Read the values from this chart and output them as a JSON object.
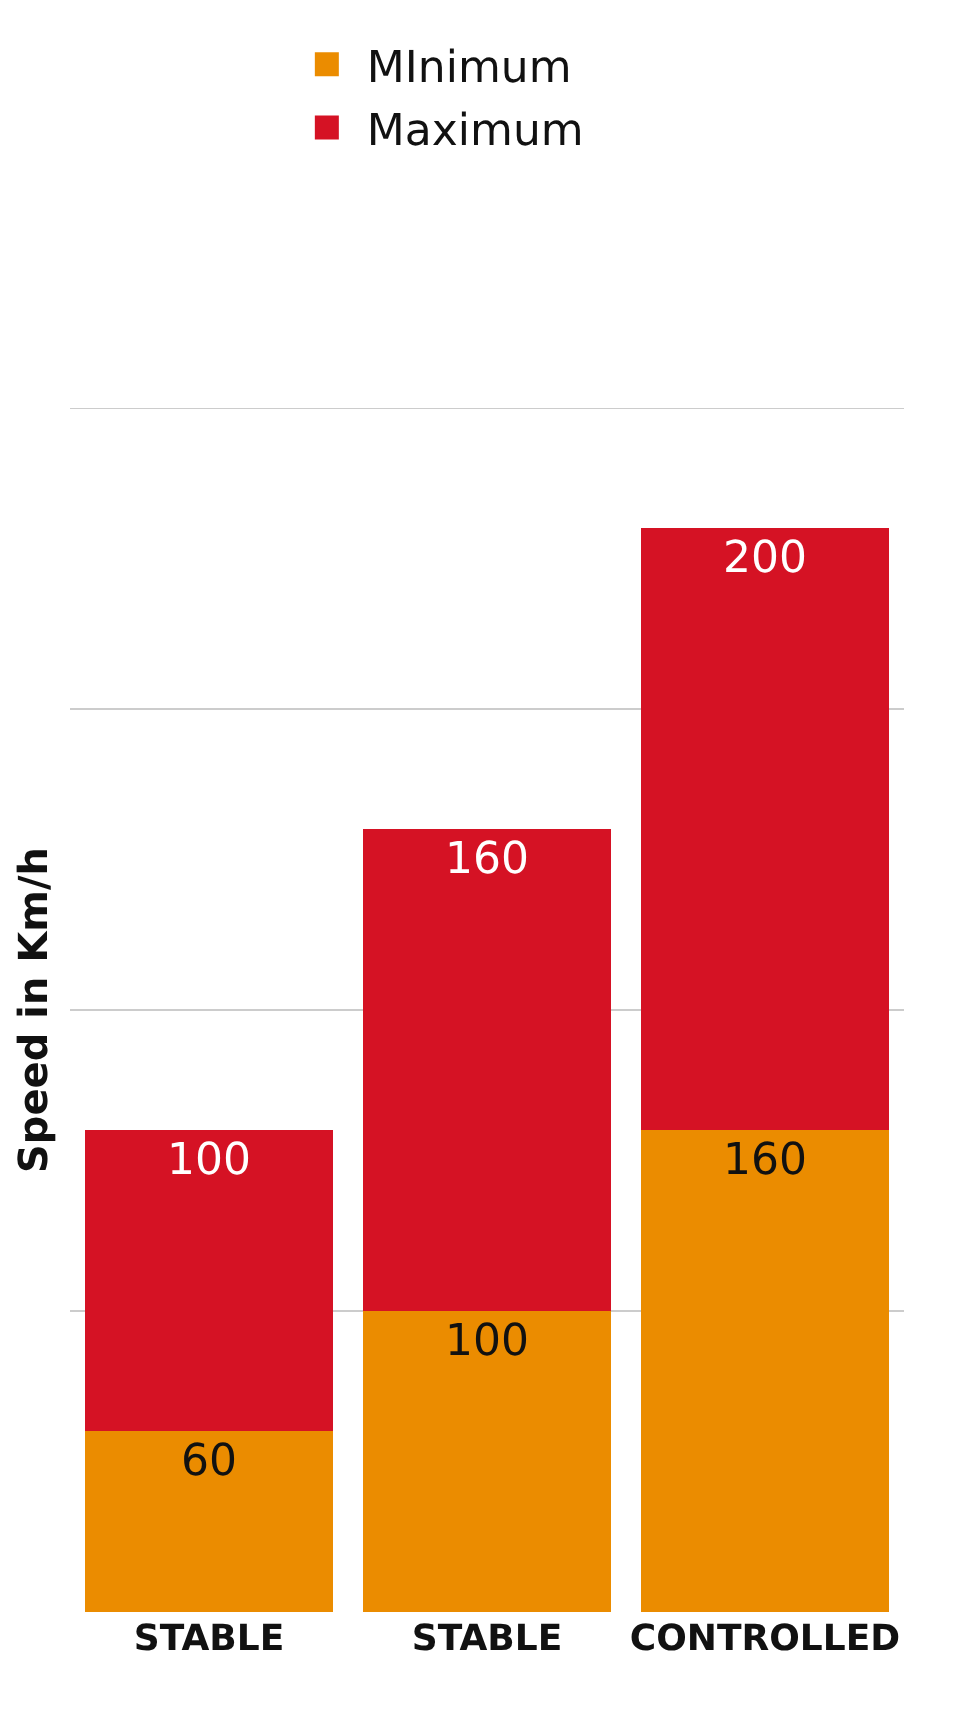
{
  "chart_data": {
    "type": "bar",
    "stacked": true,
    "ylabel": "Speed in Km/h",
    "categories": [
      "STABLE",
      "STABLE",
      "CONTROLLED"
    ],
    "series": [
      {
        "name": "MInimum",
        "color": "#eb8c00",
        "values": [
          60,
          100,
          160
        ]
      },
      {
        "name": "Maximum",
        "color": "#d51224",
        "values": [
          100,
          160,
          200
        ]
      }
    ],
    "ylim": [
      0,
      400
    ],
    "yticks": [
      {
        "value": 100,
        "label": null
      },
      {
        "value": 200,
        "label": null
      },
      {
        "value": 300,
        "label": null
      },
      {
        "value": 400,
        "label": null
      }
    ],
    "tick_labels": "x",
    "grid": "y",
    "legend": "top",
    "data_labels": true
  }
}
